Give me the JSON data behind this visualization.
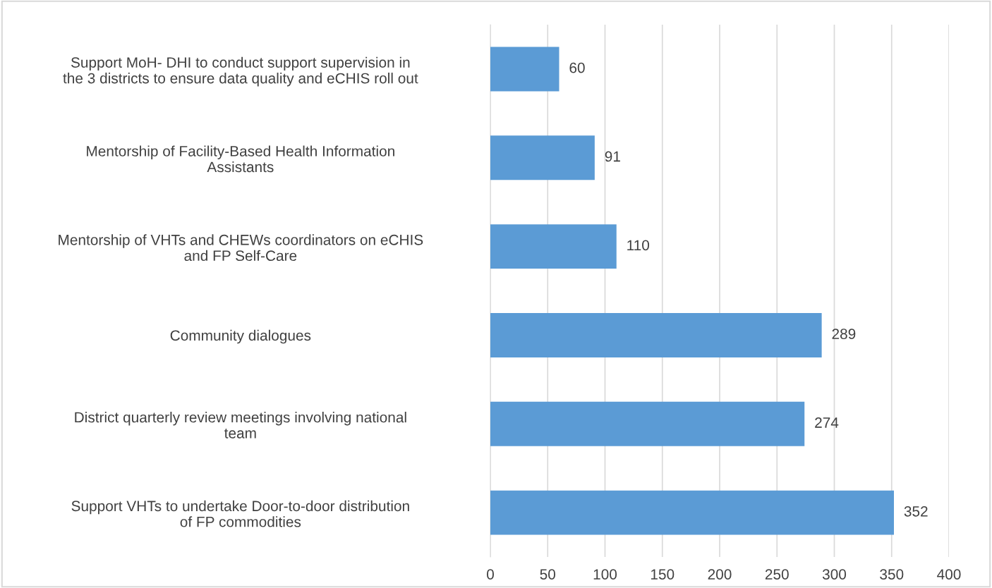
{
  "chart_data": {
    "type": "bar",
    "orientation": "horizontal",
    "categories": [
      "Support MoH- DHI to conduct support supervision in\nthe 3 districts to ensure data quality and eCHIS roll out",
      "Mentorship of Facility-Based Health Information\nAssistants",
      "Mentorship of VHTs and CHEWs coordinators on eCHIS\nand FP Self-Care",
      "Community dialogues",
      "District quarterly review meetings involving national\nteam",
      "Support VHTs to undertake Door-to-door distribution\nof FP commodities"
    ],
    "values": [
      60,
      91,
      110,
      289,
      274,
      352
    ],
    "color": "#5b9bd5",
    "xlim": [
      0,
      400
    ],
    "xticks": [
      0,
      50,
      100,
      150,
      200,
      250,
      300,
      350,
      400
    ],
    "grid": "x",
    "data_labels": true
  }
}
